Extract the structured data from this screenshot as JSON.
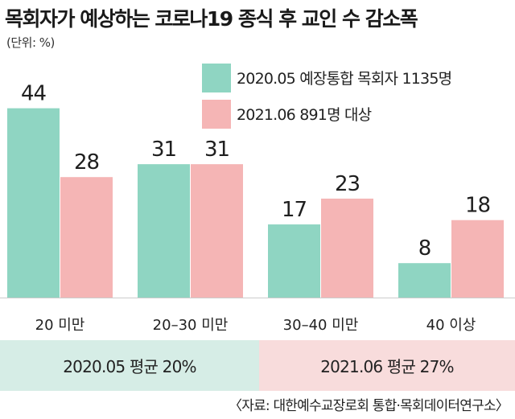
{
  "title": "목회자가 예상하는 코로나19 종식 후 교인 수 감소폭",
  "unit": "(단위: %)",
  "colors": {
    "series1": "#8fd5c2",
    "series2": "#f5b5b5",
    "axis": "#cccccc"
  },
  "chart_data": {
    "type": "bar",
    "categories": [
      "20 미만",
      "20–30 미만",
      "30–40 미만",
      "40 이상"
    ],
    "series": [
      {
        "name": "2020.05 예장통합 목회자 1135명",
        "values": [
          44,
          31,
          17,
          8
        ]
      },
      {
        "name": "2021.06 891명 대상",
        "values": [
          28,
          31,
          23,
          18
        ]
      }
    ],
    "ylim": [
      0,
      50
    ],
    "grid": false,
    "legend": "top-right"
  },
  "averages": {
    "left": "2020.05 평균 20%",
    "right": "2021.06 평균 27%"
  },
  "source": "〈자료: 대한예수교장로회 통합·목회데이터연구소〉"
}
